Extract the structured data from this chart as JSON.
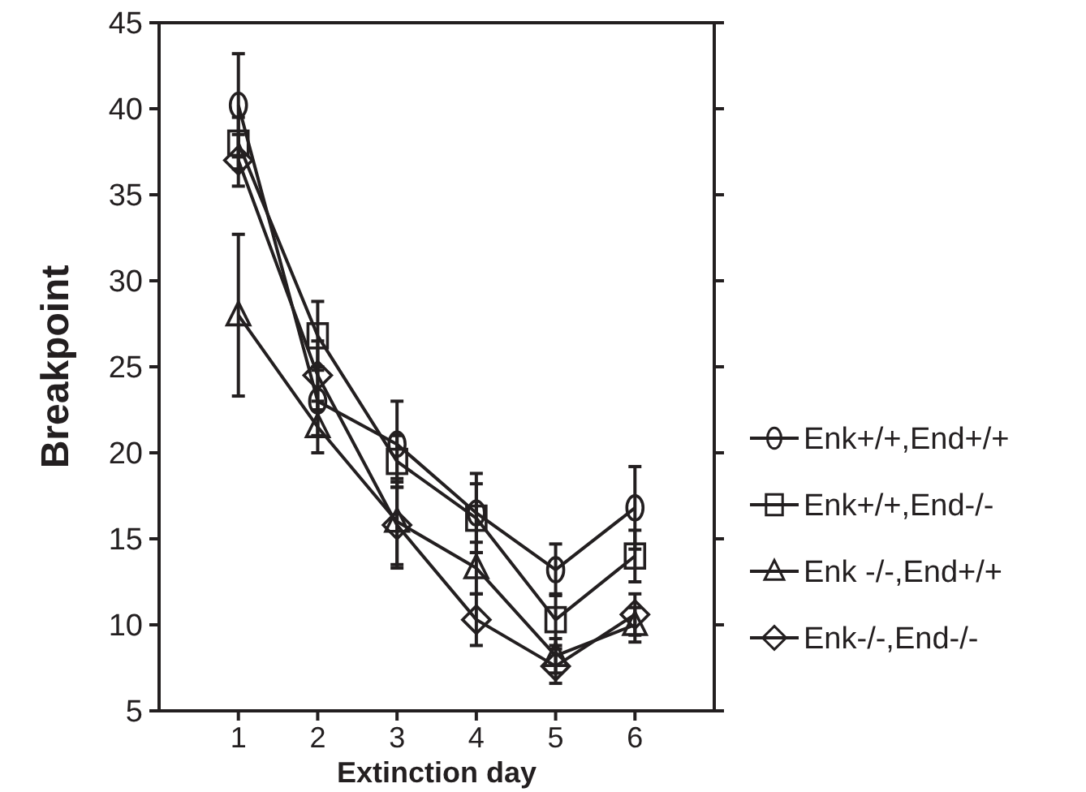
{
  "chart_data": {
    "type": "line",
    "xlabel": "Extinction day",
    "ylabel": "Breakpoint",
    "x": [
      1,
      2,
      3,
      4,
      5,
      6
    ],
    "xlim": [
      0,
      7
    ],
    "xticks": [
      1,
      2,
      3,
      4,
      5,
      6
    ],
    "ylim": [
      5,
      45
    ],
    "yticks": [
      5,
      10,
      15,
      20,
      25,
      30,
      35,
      40,
      45
    ],
    "grid": false,
    "legend": "right",
    "line_style": "solid",
    "series": [
      {
        "name": "Enk+/+,End+/+",
        "color": "#231f20",
        "marker": "circle",
        "values": [
          40.2,
          23,
          20.5,
          16.5,
          13.2,
          16.8
        ],
        "errors": [
          3,
          2,
          2.5,
          2.3,
          1.5,
          2.4
        ]
      },
      {
        "name": "Enk+/+,End-/-",
        "color": "#231f20",
        "marker": "square",
        "values": [
          38,
          26.8,
          19.5,
          16.2,
          10.3,
          14
        ],
        "errors": [
          1.5,
          2,
          1.5,
          2,
          1.5,
          1.5
        ]
      },
      {
        "name": "Enk -/-,End+/+",
        "color": "#231f20",
        "marker": "triangle",
        "values": [
          28,
          21.5,
          16,
          13.3,
          8.2,
          10
        ],
        "errors": [
          4.7,
          1.5,
          2.5,
          1.5,
          1,
          1
        ]
      },
      {
        "name": "Enk-/-,End-/-",
        "color": "#231f20",
        "marker": "diamond",
        "values": [
          37,
          24.5,
          15.8,
          10.3,
          7.6,
          10.6
        ],
        "errors": [
          1.5,
          2,
          2.5,
          1.5,
          1,
          1.2
        ]
      }
    ]
  }
}
